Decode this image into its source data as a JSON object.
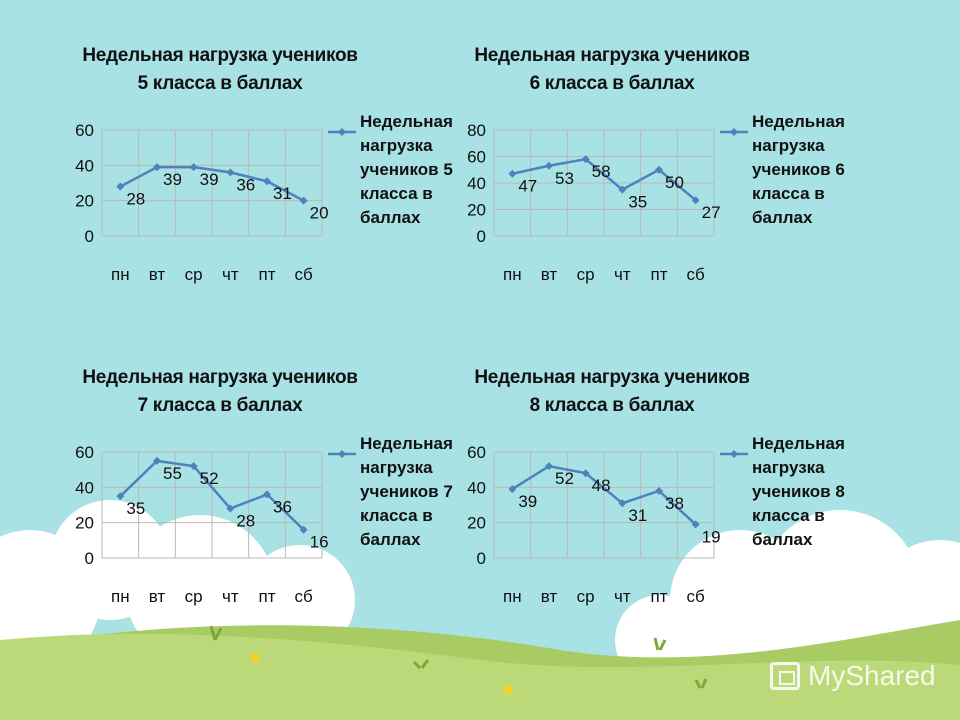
{
  "colors": {
    "sky": "#a9e2e4",
    "cloud": "#ffffff",
    "grass_light": "#bcd97a",
    "grass_dark": "#a8cc63",
    "series": "#4f81bd",
    "grid": "#b9b9b9"
  },
  "watermark": {
    "text": "MyShared",
    "icon": "presentation-board-icon"
  },
  "chart_data": [
    {
      "type": "line",
      "title_lines": [
        "Недельная нагрузка учеников",
        "5 класса в баллах"
      ],
      "categories": [
        "пн",
        "вт",
        "ср",
        "чт",
        "пт",
        "сб"
      ],
      "series": [
        {
          "name": "Недельная нагрузка учеников 5 класса в баллах",
          "values": [
            28,
            39,
            39,
            36,
            31,
            20
          ]
        }
      ],
      "ylim": [
        0,
        60
      ],
      "yticks": [
        0,
        20,
        40,
        60
      ],
      "grid": true,
      "legend": "right",
      "data_labels": true
    },
    {
      "type": "line",
      "title_lines": [
        "Недельная нагрузка учеников",
        "6 класса в баллах"
      ],
      "categories": [
        "пн",
        "вт",
        "ср",
        "чт",
        "пт",
        "сб"
      ],
      "series": [
        {
          "name": "Недельная нагрузка учеников 6 класса в баллах",
          "values": [
            47,
            53,
            58,
            35,
            50,
            27
          ]
        }
      ],
      "ylim": [
        0,
        80
      ],
      "yticks": [
        0,
        20,
        40,
        60,
        80
      ],
      "grid": true,
      "legend": "right",
      "data_labels": true
    },
    {
      "type": "line",
      "title_lines": [
        "Недельная нагрузка учеников",
        "7 класса в баллах"
      ],
      "categories": [
        "пн",
        "вт",
        "ср",
        "чт",
        "пт",
        "сб"
      ],
      "series": [
        {
          "name": "Недельная нагрузка учеников 7 класса в баллах",
          "values": [
            35,
            55,
            52,
            28,
            36,
            16
          ]
        }
      ],
      "ylim": [
        0,
        60
      ],
      "yticks": [
        0,
        20,
        40,
        60
      ],
      "grid": true,
      "legend": "right",
      "data_labels": true
    },
    {
      "type": "line",
      "title_lines": [
        "Недельная нагрузка учеников",
        "8 класса в баллах"
      ],
      "categories": [
        "пн",
        "вт",
        "ср",
        "чт",
        "пт",
        "сб"
      ],
      "series": [
        {
          "name": "Недельная нагрузка учеников 8 класса в баллах",
          "values": [
            39,
            52,
            48,
            31,
            38,
            19
          ]
        }
      ],
      "ylim": [
        0,
        60
      ],
      "yticks": [
        0,
        20,
        40,
        60
      ],
      "grid": true,
      "legend": "right",
      "data_labels": true
    }
  ]
}
